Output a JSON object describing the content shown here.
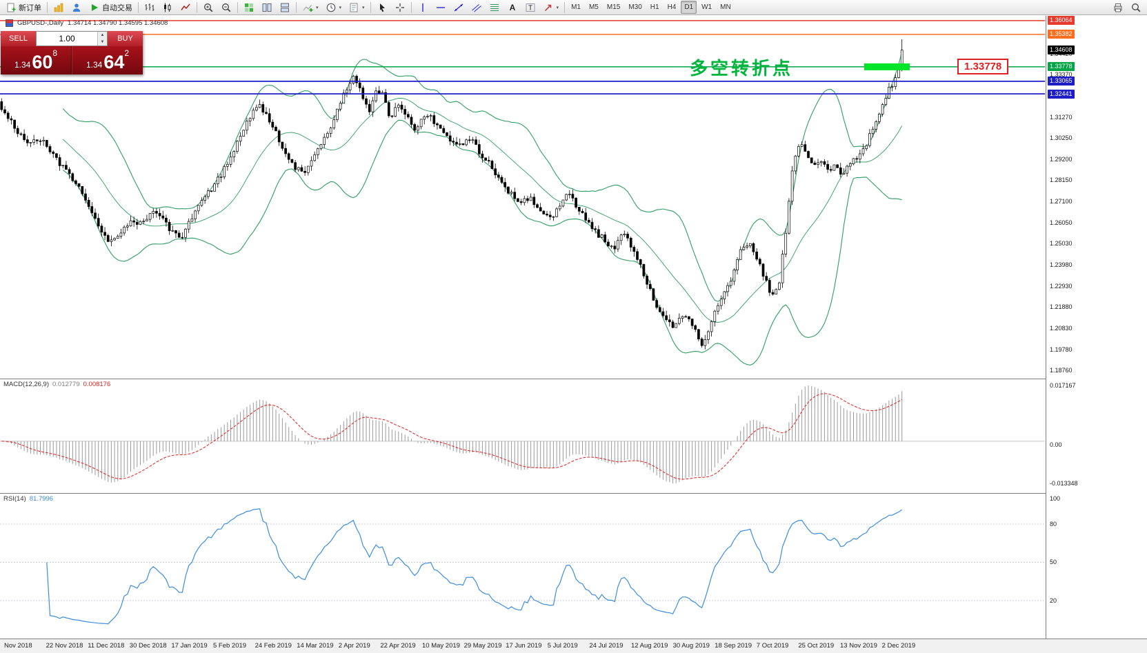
{
  "toolbar": {
    "new_order_label": "新订单",
    "auto_trading_label": "自动交易",
    "timeframes": [
      "M1",
      "M5",
      "M15",
      "M30",
      "H1",
      "H4",
      "D1",
      "W1",
      "MN"
    ],
    "active_timeframe": "D1",
    "icon_names": [
      "new-order-icon",
      "charts-icon",
      "profile-icon",
      "autotrading-play-icon",
      "bars-chart-icon",
      "candlestick-chart-icon",
      "line-chart-icon",
      "zoom-in-icon",
      "zoom-out-icon",
      "tile-windows-icon",
      "arrange-vertical-icon",
      "arrange-horizontal-icon",
      "indicators-icon",
      "periods-icon",
      "templates-icon",
      "cursor-icon",
      "crosshair-icon",
      "vertical-line-icon",
      "horizontal-line-icon",
      "trendline-icon",
      "channel-icon",
      "fibonacci-icon",
      "text-icon",
      "label-icon",
      "arrows-icon",
      "print-icon",
      "search-icon"
    ]
  },
  "order_panel": {
    "sell_label": "SELL",
    "buy_label": "BUY",
    "lot_size": "1.00",
    "sell_price_small": "1.34",
    "sell_price_big": "60",
    "sell_price_sup": "8",
    "buy_price_small": "1.34",
    "buy_price_big": "64",
    "buy_price_sup": "2"
  },
  "chart": {
    "info_symbol": "GBPUSD-,Daily",
    "info_ohlc": "1.34714 1.34790 1.34595 1.34608",
    "annotation": "多空转折点",
    "annotation_color": "#00b43c",
    "callout_label": "1.33778",
    "current_price": "1.34608",
    "price_top": 1.363,
    "price_bottom": 1.1836,
    "band_color": "#2f9e63",
    "highlight_color": "#00e42a",
    "levels": [
      {
        "label": "1.36064",
        "price": 1.36064,
        "color": "#e8392e"
      },
      {
        "label": "1.35382",
        "price": 1.35382,
        "color": "#ff6e1e"
      },
      {
        "label": "1.33778",
        "price": 1.33778,
        "color": "#00a546"
      },
      {
        "label": "1.33065",
        "price": 1.33065,
        "color": "#1e1ec8"
      },
      {
        "label": "1.32441",
        "price": 1.32441,
        "color": "#1e1ec8"
      }
    ],
    "ticks": [
      "1.34420",
      "1.33370",
      "1.31270",
      "1.30250",
      "1.29200",
      "1.28150",
      "1.27100",
      "1.26050",
      "1.25030",
      "1.23980",
      "1.22930",
      "1.21880",
      "1.20830",
      "1.19780",
      "1.18760"
    ],
    "last_candle": {
      "high": 1.3514,
      "low": 1.317,
      "close": 1.34608
    },
    "price_path": [
      [
        0.0,
        1.3165
      ],
      [
        0.015,
        1.3075
      ],
      [
        0.03,
        1.299
      ],
      [
        0.045,
        1.303
      ],
      [
        0.06,
        1.293
      ],
      [
        0.075,
        1.284
      ],
      [
        0.09,
        1.276
      ],
      [
        0.105,
        1.261
      ],
      [
        0.12,
        1.2505
      ],
      [
        0.132,
        1.256
      ],
      [
        0.145,
        1.2625
      ],
      [
        0.158,
        1.26
      ],
      [
        0.17,
        1.2665
      ],
      [
        0.18,
        1.262
      ],
      [
        0.19,
        1.256
      ],
      [
        0.2,
        1.253
      ],
      [
        0.212,
        1.264
      ],
      [
        0.225,
        1.274
      ],
      [
        0.238,
        1.28
      ],
      [
        0.25,
        1.29
      ],
      [
        0.262,
        1.301
      ],
      [
        0.275,
        1.313
      ],
      [
        0.285,
        1.319
      ],
      [
        0.295,
        1.313
      ],
      [
        0.305,
        1.305
      ],
      [
        0.315,
        1.296
      ],
      [
        0.325,
        1.289
      ],
      [
        0.335,
        1.285
      ],
      [
        0.345,
        1.292
      ],
      [
        0.355,
        1.3
      ],
      [
        0.365,
        1.308
      ],
      [
        0.375,
        1.319
      ],
      [
        0.385,
        1.329
      ],
      [
        0.393,
        1.333
      ],
      [
        0.4,
        1.324
      ],
      [
        0.408,
        1.316
      ],
      [
        0.416,
        1.327
      ],
      [
        0.424,
        1.323
      ],
      [
        0.432,
        1.312
      ],
      [
        0.44,
        1.319
      ],
      [
        0.45,
        1.313
      ],
      [
        0.46,
        1.307
      ],
      [
        0.47,
        1.315
      ],
      [
        0.48,
        1.311
      ],
      [
        0.49,
        1.305
      ],
      [
        0.5,
        1.301
      ],
      [
        0.51,
        1.2985
      ],
      [
        0.52,
        1.3025
      ],
      [
        0.53,
        1.2965
      ],
      [
        0.54,
        1.2905
      ],
      [
        0.552,
        1.2825
      ],
      [
        0.564,
        1.276
      ],
      [
        0.576,
        1.2705
      ],
      [
        0.588,
        1.2725
      ],
      [
        0.6,
        1.266
      ],
      [
        0.61,
        1.2625
      ],
      [
        0.62,
        1.27
      ],
      [
        0.63,
        1.2745
      ],
      [
        0.64,
        1.268
      ],
      [
        0.65,
        1.261
      ],
      [
        0.66,
        1.256
      ],
      [
        0.67,
        1.252
      ],
      [
        0.68,
        1.2485
      ],
      [
        0.69,
        1.2545
      ],
      [
        0.7,
        1.2495
      ],
      [
        0.71,
        1.239
      ],
      [
        0.72,
        1.227
      ],
      [
        0.73,
        1.2165
      ],
      [
        0.74,
        1.2115
      ],
      [
        0.748,
        1.2085
      ],
      [
        0.756,
        1.216
      ],
      [
        0.764,
        1.2125
      ],
      [
        0.772,
        1.2055
      ],
      [
        0.78,
        1.1995
      ],
      [
        0.79,
        1.214
      ],
      [
        0.8,
        1.223
      ],
      [
        0.81,
        1.233
      ],
      [
        0.82,
        1.2455
      ],
      [
        0.83,
        1.2505
      ],
      [
        0.84,
        1.243
      ],
      [
        0.848,
        1.233
      ],
      [
        0.856,
        1.2245
      ],
      [
        0.863,
        1.229
      ],
      [
        0.871,
        1.256
      ],
      [
        0.879,
        1.289
      ],
      [
        0.887,
        1.2995
      ],
      [
        0.895,
        1.294
      ],
      [
        0.903,
        1.289
      ],
      [
        0.911,
        1.2925
      ],
      [
        0.919,
        1.286
      ],
      [
        0.927,
        1.2885
      ],
      [
        0.935,
        1.2845
      ],
      [
        0.943,
        1.2905
      ],
      [
        0.951,
        1.293
      ],
      [
        0.959,
        1.2985
      ],
      [
        0.967,
        1.306
      ],
      [
        0.975,
        1.313
      ],
      [
        0.985,
        1.326
      ],
      [
        0.993,
        1.331
      ],
      [
        1.0,
        1.3461
      ]
    ]
  },
  "macd": {
    "label": "MACD(12,26,9)",
    "value_main": "0.012779",
    "value_signal": "0.008176",
    "axis_max": "0.017167",
    "axis_zero": "0.00",
    "axis_min": "-0.013348"
  },
  "rsi": {
    "label": "RSI(14)",
    "value": "81.7996",
    "ticks": [
      "100",
      "80",
      "50",
      "20"
    ],
    "tick_values": [
      100,
      80,
      50,
      20
    ],
    "levels": [
      80,
      50,
      20
    ]
  },
  "date_axis": [
    "Nov 2018",
    "22 Nov 2018",
    "11 Dec 2018",
    "30 Dec 2018",
    "17 Jan 2019",
    "5 Feb 2019",
    "24 Feb 2019",
    "14 Mar 2019",
    "2 Apr 2019",
    "22 Apr 2019",
    "10 May 2019",
    "29 May 2019",
    "17 Jun 2019",
    "5 Jul 2019",
    "24 Jul 2019",
    "12 Aug 2019",
    "30 Aug 2019",
    "18 Sep 2019",
    "7 Oct 2019",
    "25 Oct 2019",
    "13 Nov 2019",
    "2 Dec 2019"
  ]
}
